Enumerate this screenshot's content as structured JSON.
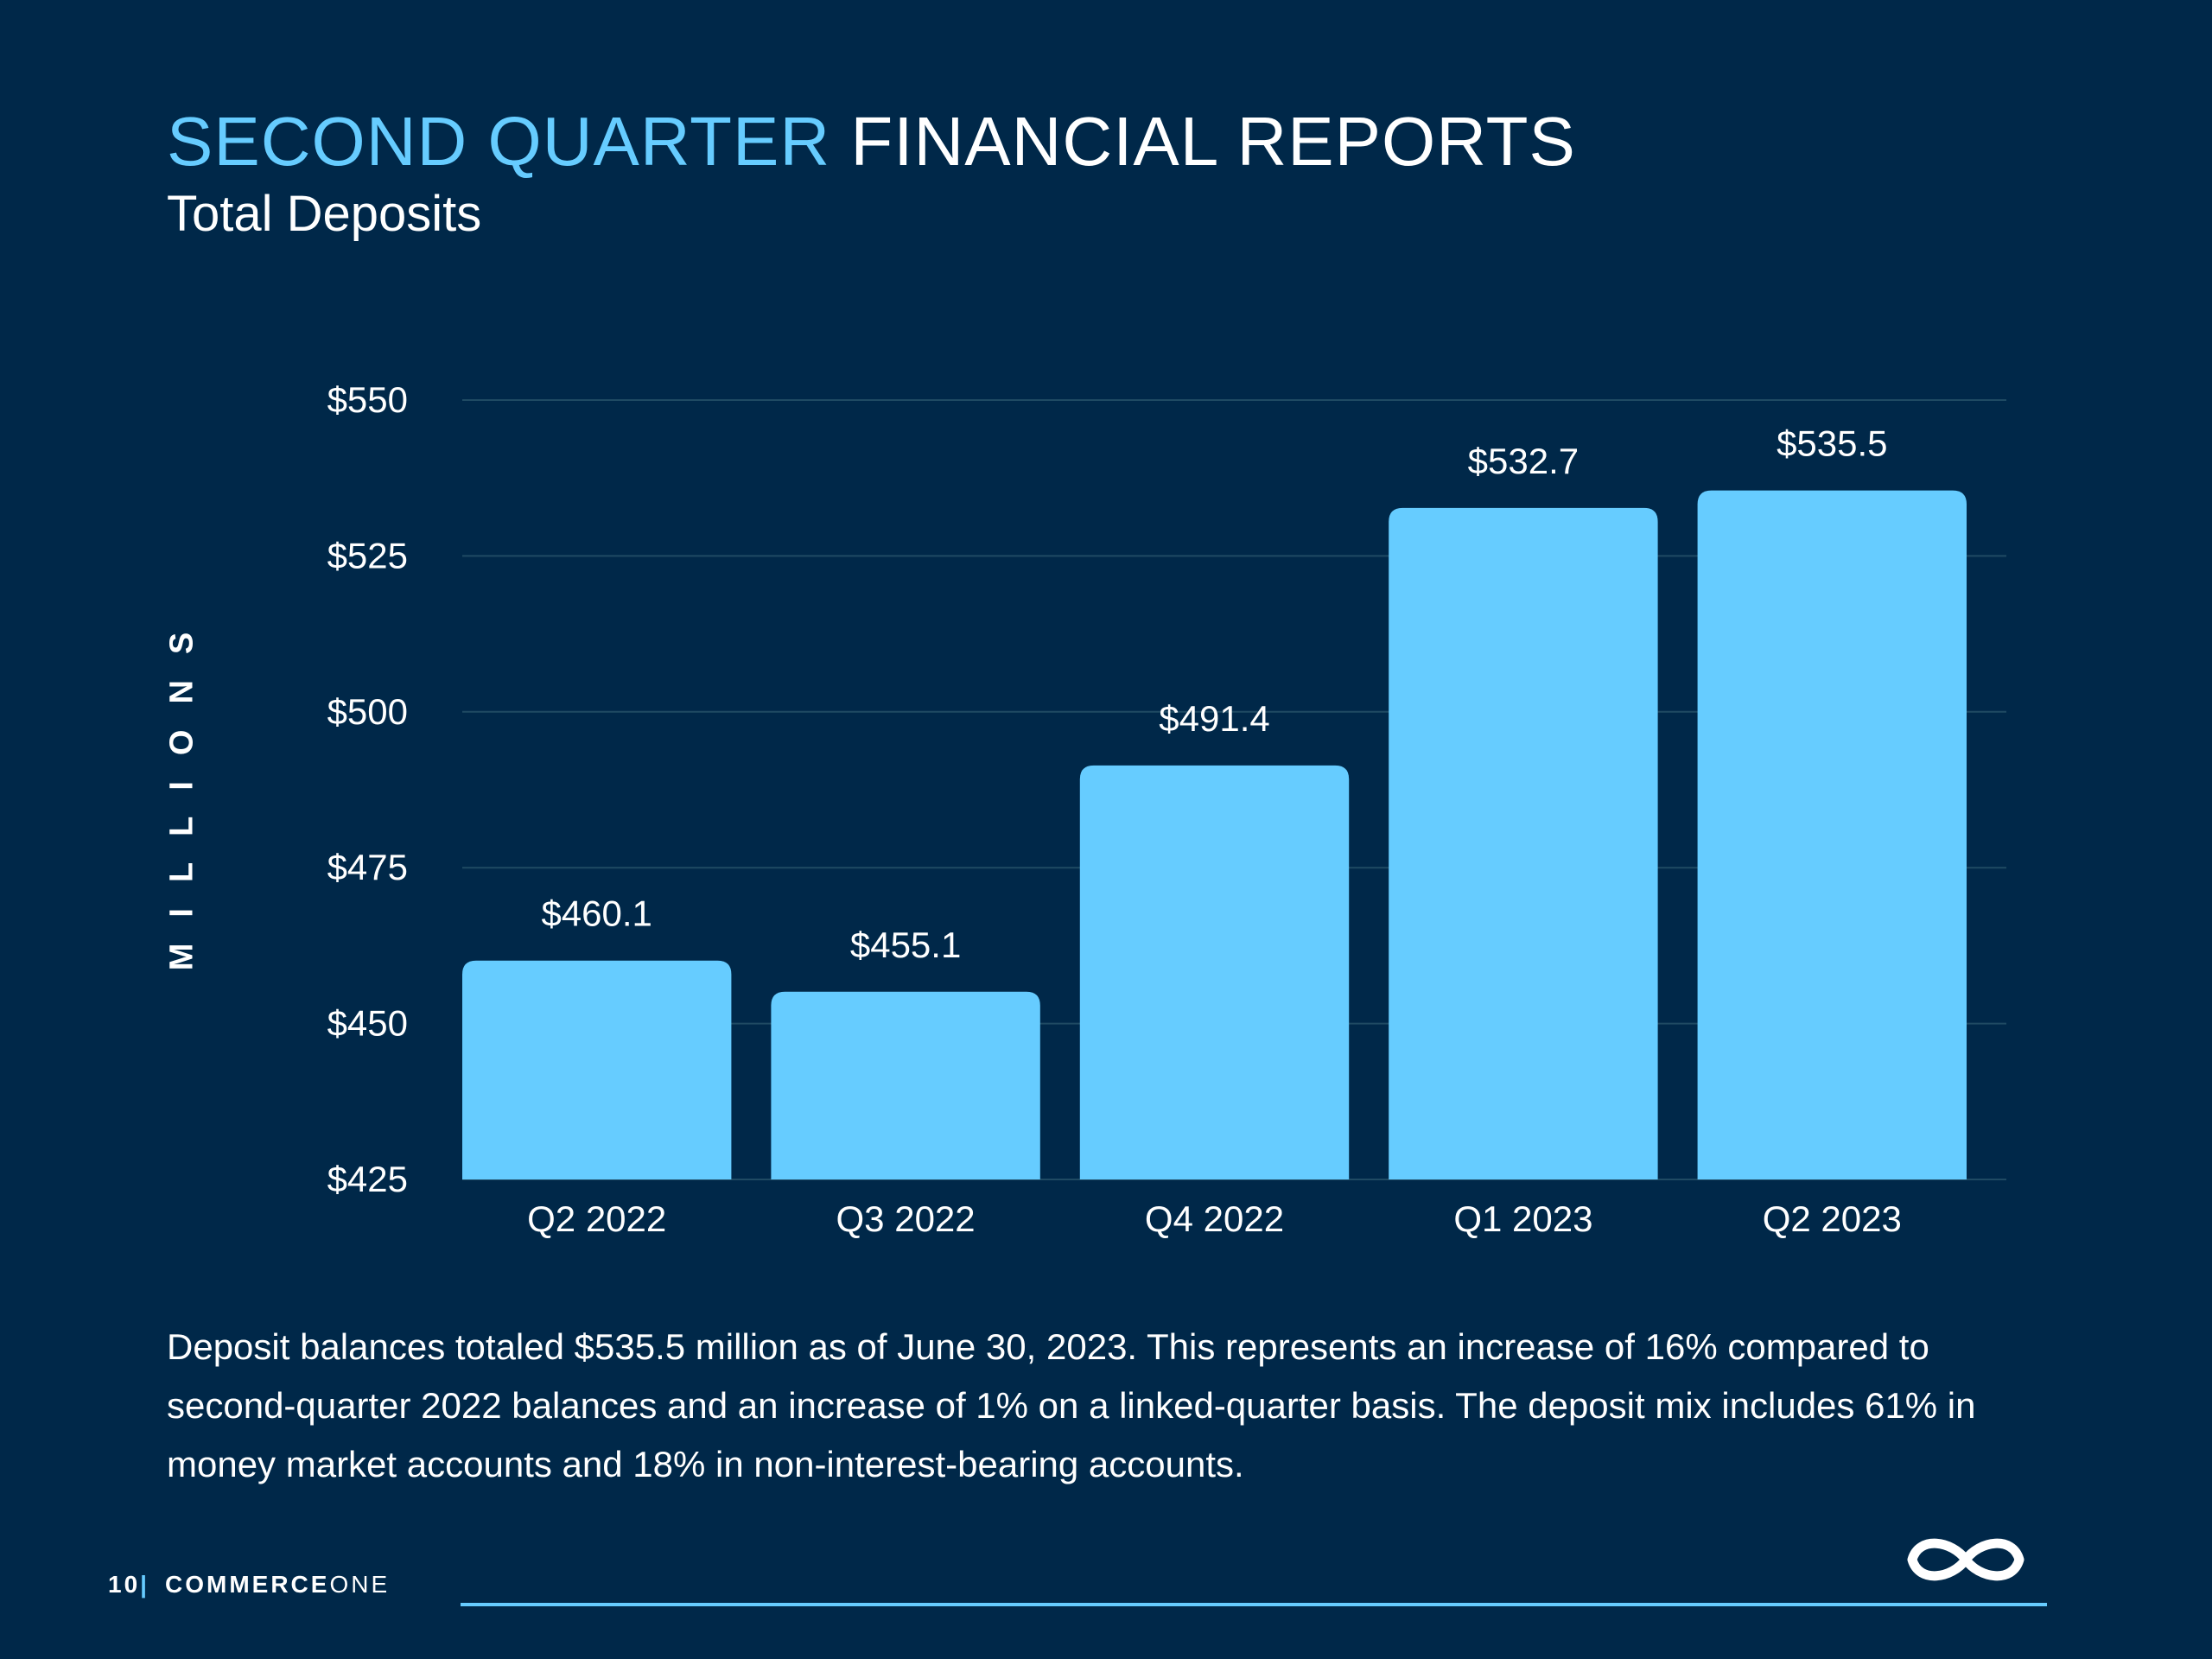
{
  "header": {
    "title_accent": "SECOND QUARTER",
    "title_rest": "FINANCIAL REPORTS",
    "subtitle": "Total Deposits"
  },
  "axis_label_vertical": "MILLIONS",
  "chart_data": {
    "type": "bar",
    "categories": [
      "Q2 2022",
      "Q3 2022",
      "Q4 2022",
      "Q1 2023",
      "Q2 2023"
    ],
    "values": [
      460.1,
      455.1,
      491.4,
      532.7,
      535.5
    ],
    "value_labels": [
      "$460.1",
      "$455.1",
      "$491.4",
      "$532.7",
      "$535.5"
    ],
    "ylim": [
      425,
      550
    ],
    "yticks": [
      425,
      450,
      475,
      500,
      525,
      550
    ],
    "ytick_labels": [
      "$425",
      "$450",
      "$475",
      "$500",
      "$525",
      "$550"
    ],
    "ylabel": "MILLIONS",
    "grid": true,
    "bar_color": "#66CCFF"
  },
  "description": "Deposit balances totaled $535.5 million as of June 30, 2023. This represents an increase of 16% compared to second-quarter 2022 balances and an increase of 1% on a linked-quarter basis. The deposit mix includes 61% in money market accounts and 18% in non-interest-bearing accounts.",
  "footer": {
    "page_number": "10",
    "separator": "|",
    "brand_bold": "COMMERCE",
    "brand_light": "ONE"
  },
  "logo_icon": "infinity-icon",
  "colors": {
    "background": "#002849",
    "accent": "#66CCFF"
  }
}
